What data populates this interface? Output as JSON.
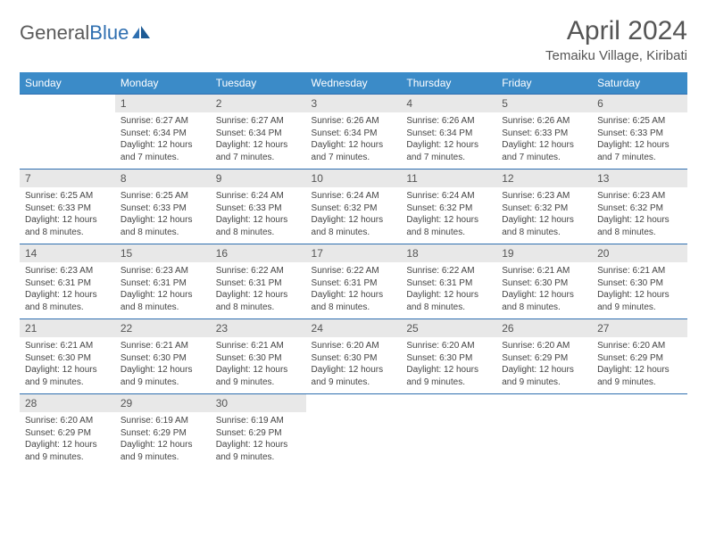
{
  "brand": {
    "part1": "General",
    "part2": "Blue"
  },
  "title": "April 2024",
  "location": "Temaiku Village, Kiribati",
  "colors": {
    "header_bg": "#3b8bc8",
    "header_text": "#ffffff",
    "rule": "#2f6fb0",
    "daynum_bg": "#e8e8e8",
    "text": "#444444",
    "title_text": "#555555"
  },
  "daysOfWeek": [
    "Sunday",
    "Monday",
    "Tuesday",
    "Wednesday",
    "Thursday",
    "Friday",
    "Saturday"
  ],
  "weeks": [
    [
      {
        "n": "",
        "sr": "",
        "ss": "",
        "dl": ""
      },
      {
        "n": "1",
        "sr": "Sunrise: 6:27 AM",
        "ss": "Sunset: 6:34 PM",
        "dl": "Daylight: 12 hours and 7 minutes."
      },
      {
        "n": "2",
        "sr": "Sunrise: 6:27 AM",
        "ss": "Sunset: 6:34 PM",
        "dl": "Daylight: 12 hours and 7 minutes."
      },
      {
        "n": "3",
        "sr": "Sunrise: 6:26 AM",
        "ss": "Sunset: 6:34 PM",
        "dl": "Daylight: 12 hours and 7 minutes."
      },
      {
        "n": "4",
        "sr": "Sunrise: 6:26 AM",
        "ss": "Sunset: 6:34 PM",
        "dl": "Daylight: 12 hours and 7 minutes."
      },
      {
        "n": "5",
        "sr": "Sunrise: 6:26 AM",
        "ss": "Sunset: 6:33 PM",
        "dl": "Daylight: 12 hours and 7 minutes."
      },
      {
        "n": "6",
        "sr": "Sunrise: 6:25 AM",
        "ss": "Sunset: 6:33 PM",
        "dl": "Daylight: 12 hours and 7 minutes."
      }
    ],
    [
      {
        "n": "7",
        "sr": "Sunrise: 6:25 AM",
        "ss": "Sunset: 6:33 PM",
        "dl": "Daylight: 12 hours and 8 minutes."
      },
      {
        "n": "8",
        "sr": "Sunrise: 6:25 AM",
        "ss": "Sunset: 6:33 PM",
        "dl": "Daylight: 12 hours and 8 minutes."
      },
      {
        "n": "9",
        "sr": "Sunrise: 6:24 AM",
        "ss": "Sunset: 6:33 PM",
        "dl": "Daylight: 12 hours and 8 minutes."
      },
      {
        "n": "10",
        "sr": "Sunrise: 6:24 AM",
        "ss": "Sunset: 6:32 PM",
        "dl": "Daylight: 12 hours and 8 minutes."
      },
      {
        "n": "11",
        "sr": "Sunrise: 6:24 AM",
        "ss": "Sunset: 6:32 PM",
        "dl": "Daylight: 12 hours and 8 minutes."
      },
      {
        "n": "12",
        "sr": "Sunrise: 6:23 AM",
        "ss": "Sunset: 6:32 PM",
        "dl": "Daylight: 12 hours and 8 minutes."
      },
      {
        "n": "13",
        "sr": "Sunrise: 6:23 AM",
        "ss": "Sunset: 6:32 PM",
        "dl": "Daylight: 12 hours and 8 minutes."
      }
    ],
    [
      {
        "n": "14",
        "sr": "Sunrise: 6:23 AM",
        "ss": "Sunset: 6:31 PM",
        "dl": "Daylight: 12 hours and 8 minutes."
      },
      {
        "n": "15",
        "sr": "Sunrise: 6:23 AM",
        "ss": "Sunset: 6:31 PM",
        "dl": "Daylight: 12 hours and 8 minutes."
      },
      {
        "n": "16",
        "sr": "Sunrise: 6:22 AM",
        "ss": "Sunset: 6:31 PM",
        "dl": "Daylight: 12 hours and 8 minutes."
      },
      {
        "n": "17",
        "sr": "Sunrise: 6:22 AM",
        "ss": "Sunset: 6:31 PM",
        "dl": "Daylight: 12 hours and 8 minutes."
      },
      {
        "n": "18",
        "sr": "Sunrise: 6:22 AM",
        "ss": "Sunset: 6:31 PM",
        "dl": "Daylight: 12 hours and 8 minutes."
      },
      {
        "n": "19",
        "sr": "Sunrise: 6:21 AM",
        "ss": "Sunset: 6:30 PM",
        "dl": "Daylight: 12 hours and 8 minutes."
      },
      {
        "n": "20",
        "sr": "Sunrise: 6:21 AM",
        "ss": "Sunset: 6:30 PM",
        "dl": "Daylight: 12 hours and 9 minutes."
      }
    ],
    [
      {
        "n": "21",
        "sr": "Sunrise: 6:21 AM",
        "ss": "Sunset: 6:30 PM",
        "dl": "Daylight: 12 hours and 9 minutes."
      },
      {
        "n": "22",
        "sr": "Sunrise: 6:21 AM",
        "ss": "Sunset: 6:30 PM",
        "dl": "Daylight: 12 hours and 9 minutes."
      },
      {
        "n": "23",
        "sr": "Sunrise: 6:21 AM",
        "ss": "Sunset: 6:30 PM",
        "dl": "Daylight: 12 hours and 9 minutes."
      },
      {
        "n": "24",
        "sr": "Sunrise: 6:20 AM",
        "ss": "Sunset: 6:30 PM",
        "dl": "Daylight: 12 hours and 9 minutes."
      },
      {
        "n": "25",
        "sr": "Sunrise: 6:20 AM",
        "ss": "Sunset: 6:30 PM",
        "dl": "Daylight: 12 hours and 9 minutes."
      },
      {
        "n": "26",
        "sr": "Sunrise: 6:20 AM",
        "ss": "Sunset: 6:29 PM",
        "dl": "Daylight: 12 hours and 9 minutes."
      },
      {
        "n": "27",
        "sr": "Sunrise: 6:20 AM",
        "ss": "Sunset: 6:29 PM",
        "dl": "Daylight: 12 hours and 9 minutes."
      }
    ],
    [
      {
        "n": "28",
        "sr": "Sunrise: 6:20 AM",
        "ss": "Sunset: 6:29 PM",
        "dl": "Daylight: 12 hours and 9 minutes."
      },
      {
        "n": "29",
        "sr": "Sunrise: 6:19 AM",
        "ss": "Sunset: 6:29 PM",
        "dl": "Daylight: 12 hours and 9 minutes."
      },
      {
        "n": "30",
        "sr": "Sunrise: 6:19 AM",
        "ss": "Sunset: 6:29 PM",
        "dl": "Daylight: 12 hours and 9 minutes."
      },
      {
        "n": "",
        "sr": "",
        "ss": "",
        "dl": ""
      },
      {
        "n": "",
        "sr": "",
        "ss": "",
        "dl": ""
      },
      {
        "n": "",
        "sr": "",
        "ss": "",
        "dl": ""
      },
      {
        "n": "",
        "sr": "",
        "ss": "",
        "dl": ""
      }
    ]
  ]
}
